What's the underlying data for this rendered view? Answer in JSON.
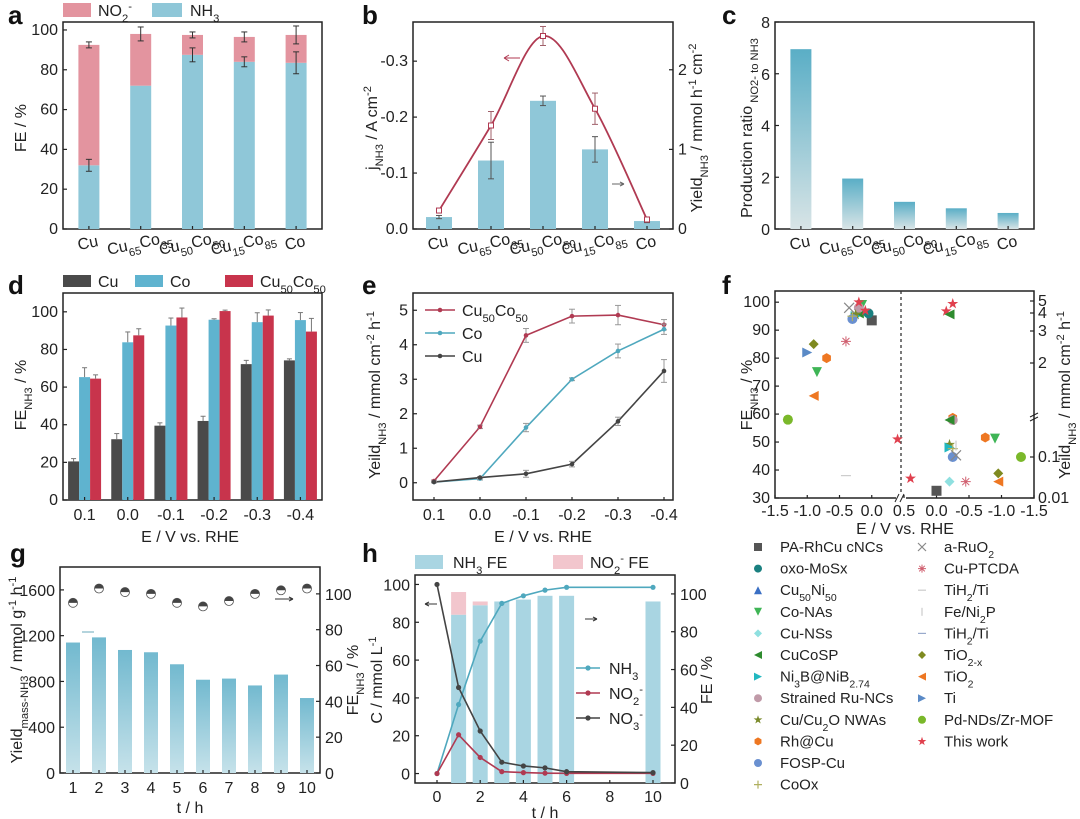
{
  "panels": {
    "a": "a",
    "b": "b",
    "c": "c",
    "d": "d",
    "e": "e",
    "f": "f",
    "g": "g",
    "h": "h"
  },
  "colors": {
    "nh3_blue": "#8fc7d8",
    "no2_pink": "#e3949f",
    "cu_dark": "#4a4a4a",
    "co_blue": "#5fb3cf",
    "cuco_red": "#c8344c",
    "line_red": "#b03a52",
    "line_teal": "#4fa8be",
    "line_gray": "#444444",
    "bar_light": "#a9d5e2"
  },
  "chart_data": [
    {
      "id": "a",
      "type": "bar",
      "stacked": true,
      "categories": [
        "Cu",
        "Cu65Co35",
        "Cu50Co50",
        "Cu15Co85",
        "Co"
      ],
      "category_labels": [
        {
          "main": "Cu",
          "sub1": "",
          "main2": "",
          "sub2": ""
        },
        {
          "main": "Cu",
          "sub1": "65",
          "main2": "Co",
          "sub2": "35"
        },
        {
          "main": "Cu",
          "sub1": "50",
          "main2": "Co",
          "sub2": "50"
        },
        {
          "main": "Cu",
          "sub1": "15",
          "main2": "Co",
          "sub2": "85"
        },
        {
          "main": "Co",
          "sub1": "",
          "main2": "",
          "sub2": ""
        }
      ],
      "series": [
        {
          "name": "NH3",
          "values": [
            32,
            72,
            87.5,
            84,
            83.5
          ],
          "err": [
            3,
            0,
            3.5,
            2.5,
            5.5
          ]
        },
        {
          "name": "NO2-",
          "values": [
            60.5,
            26,
            10,
            12.5,
            14
          ],
          "err": [
            1.5,
            3.5,
            1.5,
            2.5,
            4.5
          ]
        }
      ],
      "legend": [
        {
          "label": "NO",
          "sub": "2",
          "sup": "-"
        },
        {
          "label": "NH",
          "sub": "3",
          "sup": ""
        }
      ],
      "ylabel": "FE / %",
      "yticks": [
        "0",
        "20",
        "40",
        "60",
        "80",
        "100"
      ],
      "ylim": [
        0,
        104
      ]
    },
    {
      "id": "b",
      "type": "bar+line",
      "categories": [
        "Cu",
        "Cu65Co35",
        "Cu50Co50",
        "Cu15Co85",
        "Co"
      ],
      "bars": {
        "name": "Yield NH3",
        "axis": "right",
        "values": [
          0.15,
          0.86,
          1.61,
          1.0,
          0.1
        ],
        "err": [
          0.02,
          0.23,
          0.06,
          0.16,
          0.02
        ]
      },
      "line": {
        "name": "j NH3",
        "axis": "left",
        "values": [
          -0.033,
          -0.185,
          -0.345,
          -0.215,
          -0.017
        ],
        "err": [
          0.003,
          0.025,
          0.017,
          0.028,
          0.004
        ]
      },
      "ylabel_left": "j",
      "ylabel_left_sub": "NH3",
      "ylabel_left_unit": "/ A cm",
      "ylabel_left_sup": "-2",
      "ylabel_right": "Yield",
      "ylabel_right_sub": "NH3",
      "ylabel_right_unit": "/ mmol h",
      "ylabel_right_sup1": "-1",
      "ylabel_right_mid": " cm",
      "ylabel_right_sup2": "-2",
      "yticks_left": [
        "0.0",
        "-0.1",
        "-0.2",
        "-0.3"
      ],
      "yticks_right": [
        "0",
        "1",
        "2"
      ],
      "ylim_left": [
        0,
        -0.37
      ],
      "ylim_right": [
        0,
        2.6
      ]
    },
    {
      "id": "c",
      "type": "bar",
      "categories": [
        "Cu",
        "Cu65Co35",
        "Cu50Co50",
        "Cu15Co85",
        "Co"
      ],
      "values": [
        6.95,
        1.95,
        1.05,
        0.8,
        0.62
      ],
      "ylabel": "Production  ratio",
      "ylabel_sub": "NO2- to NH3",
      "yticks": [
        "0",
        "2",
        "4",
        "6",
        "8"
      ],
      "ylim": [
        0,
        8
      ]
    },
    {
      "id": "d",
      "type": "bar",
      "grouped": true,
      "categories": [
        "0.1",
        "0.0",
        "-0.1",
        "-0.2",
        "-0.3",
        "-0.4"
      ],
      "series": [
        {
          "name": "Cu",
          "values": [
            20.5,
            32.3,
            39.5,
            42,
            72.2,
            74.2
          ],
          "err": [
            1.5,
            3,
            1.5,
            2.5,
            2,
            0.8
          ]
        },
        {
          "name": "Co",
          "values": [
            65.3,
            83.8,
            92.7,
            95.8,
            94.5,
            95.6
          ],
          "err": [
            5,
            5.5,
            4,
            0.5,
            5,
            4
          ]
        },
        {
          "name": "Cu50Co50",
          "values": [
            64.5,
            87.5,
            97,
            100.4,
            98,
            89.5
          ],
          "err": [
            2,
            3.5,
            5,
            0.5,
            3,
            7
          ]
        }
      ],
      "ylabel": "FE",
      "ylabel_sub": "NH3",
      "ylabel_unit": " / %",
      "xlabel": "E / V vs. RHE",
      "yticks": [
        "0",
        "20",
        "40",
        "60",
        "80",
        "100"
      ],
      "ylim": [
        0,
        110
      ]
    },
    {
      "id": "e",
      "type": "line",
      "x": [
        "0.1",
        "0.0",
        "-0.1",
        "-0.2",
        "-0.3",
        "-0.4"
      ],
      "series": [
        {
          "name": "Cu50Co50",
          "values": [
            0.05,
            1.62,
            4.27,
            4.83,
            4.86,
            4.58
          ],
          "err": [
            0.03,
            0.05,
            0.2,
            0.2,
            0.28,
            0.15
          ]
        },
        {
          "name": "Co",
          "values": [
            0.02,
            0.12,
            1.6,
            3.0,
            3.82,
            4.45
          ],
          "err": [
            0.02,
            0.04,
            0.12,
            0.04,
            0.2,
            0.15
          ]
        },
        {
          "name": "Cu",
          "values": [
            0.02,
            0.15,
            0.26,
            0.54,
            1.78,
            3.24
          ],
          "err": [
            0.02,
            0.03,
            0.1,
            0.08,
            0.12,
            0.33
          ]
        }
      ],
      "ylabel": "Yeild",
      "ylabel_sub": "NH3",
      "ylabel_unit": " / mmol cm",
      "ylabel_sup1": "-2",
      "ylabel_unit2": " h",
      "ylabel_sup2": "-1",
      "xlabel": "E / V vs. RHE",
      "yticks": [
        "0",
        "1",
        "2",
        "3",
        "4",
        "5"
      ],
      "ylim": [
        -0.5,
        5.5
      ]
    },
    {
      "id": "f",
      "type": "scatter",
      "xlabel": "E / V vs. RHE",
      "ylabel_left": "FE",
      "ylabel_left_sub": "NH3",
      "ylabel_left_unit": " / %",
      "ylabel_right": "Yeild",
      "ylabel_right_sub": "NH3",
      "ylabel_right_unit": " / mmol cm",
      "ylabel_right_sup1": "-2",
      "ylabel_right_unit2": " h",
      "ylabel_right_sup2": "-1",
      "xticks_left": [
        "-1.5",
        "-1.0",
        "-0.5",
        "0.0",
        "0.5"
      ],
      "xticks_right": [
        "0.5",
        "0.0",
        "-0.5",
        "-1.0",
        "-1.5"
      ],
      "yticks_left": [
        "30",
        "40",
        "50",
        "60",
        "70",
        "80",
        "90",
        "100"
      ],
      "yticks_right": [
        "0.01",
        "0.1",
        "2",
        "3",
        "4",
        "5"
      ],
      "ylim_left": [
        30,
        104
      ],
      "left_points": [
        {
          "name": "PA-RhCu cNCs",
          "x": 0.0,
          "y": 93.5
        },
        {
          "name": "oxo-MoSx",
          "x": -0.05,
          "y": 96
        },
        {
          "name": "Cu50Ni50",
          "x": -0.2,
          "y": 99
        },
        {
          "name": "Co-NAs",
          "x": -0.15,
          "y": 99
        },
        {
          "name": "Cu-NSs",
          "x": -0.3,
          "y": 94
        },
        {
          "name": "CuCoSP",
          "x": -0.2,
          "y": 96
        },
        {
          "name": "Ni3B@NiB2.74",
          "x": -0.25,
          "y": 95
        },
        {
          "name": "Strained Ru-NCs",
          "x": -0.2,
          "y": 98
        },
        {
          "name": "Cu/Cu2O NWAs",
          "x": -0.25,
          "y": 95.5
        },
        {
          "name": "Rh@Cu",
          "x": -0.7,
          "y": 80
        },
        {
          "name": "FOSP-Cu",
          "x": -0.3,
          "y": 94
        },
        {
          "name": "CoOx",
          "x": -0.3,
          "y": 95
        },
        {
          "name": "a-RuO2",
          "x": -0.35,
          "y": 98
        },
        {
          "name": "Cu-PTCDA",
          "x": -0.4,
          "y": 86
        },
        {
          "name": "TiH2/Ti",
          "x": -0.4,
          "y": 38
        },
        {
          "name": "TiO2-x",
          "x": -0.9,
          "y": 85
        },
        {
          "name": "TiO2",
          "x": -0.9,
          "y": 66.5
        },
        {
          "name": "Ti",
          "x": -1.0,
          "y": 82
        },
        {
          "name": "Pd-NDs/Zr-MOF",
          "x": -1.3,
          "y": 58
        },
        {
          "name": "Co-NAs",
          "x": -0.85,
          "y": 75
        },
        {
          "name": "This work",
          "x": -0.2,
          "y": 100
        },
        {
          "name": "This work",
          "x": -0.1,
          "y": 97
        },
        {
          "name": "This work",
          "x": 0.4,
          "y": 51
        }
      ],
      "right_points_note": "yield on log-broken axis",
      "right_points": [
        {
          "name": "This work",
          "x": -0.25,
          "y": 4.8
        },
        {
          "name": "This work",
          "x": -0.15,
          "y": 4.3
        },
        {
          "name": "CuCoSP",
          "x": -0.2,
          "y": 4.1
        },
        {
          "name": "Rh@Cu",
          "x": -0.25,
          "y": 0.9
        },
        {
          "name": "Strained Ru-NCs",
          "x": -0.25,
          "y": 0.8
        },
        {
          "name": "CuCoSP",
          "x": -0.2,
          "y": 0.8
        },
        {
          "name": "Rh@Cu",
          "x": -0.75,
          "y": 0.3
        },
        {
          "name": "Co-NAs",
          "x": -0.9,
          "y": 0.28
        },
        {
          "name": "Cu/Cu2O NWAs",
          "x": -0.2,
          "y": 0.2
        },
        {
          "name": "Ni3B@NiB2.74",
          "x": -0.2,
          "y": 0.17
        },
        {
          "name": "CoOx",
          "x": -0.25,
          "y": 0.16
        },
        {
          "name": "Fe/Ni2P",
          "x": -0.3,
          "y": 0.19
        },
        {
          "name": "FOSP-Cu",
          "x": -0.25,
          "y": 0.1
        },
        {
          "name": "a-RuO2",
          "x": -0.3,
          "y": 0.11
        },
        {
          "name": "Pd-NDs/Zr-MOF",
          "x": -1.3,
          "y": 0.1
        },
        {
          "name": "TiO2-x",
          "x": -0.95,
          "y": 0.04
        },
        {
          "name": "TiO2",
          "x": -0.95,
          "y": 0.025
        },
        {
          "name": "Cu-NSs",
          "x": -0.2,
          "y": 0.025
        },
        {
          "name": "Cu-PTCDA",
          "x": -0.45,
          "y": 0.025
        },
        {
          "name": "This work",
          "x": 0.4,
          "y": 0.03
        },
        {
          "name": "PA-RhCu cNCs",
          "x": 0.0,
          "y": 0.015
        }
      ],
      "legend_col1": [
        {
          "label": "PA-RhCu cNCs",
          "marker": "square",
          "color": "#555555"
        },
        {
          "label": "oxo-MoSx",
          "marker": "circle",
          "color": "#1a8080"
        },
        {
          "label": "Cu50Ni50",
          "marker": "triangle-up",
          "color": "#3a6fc4"
        },
        {
          "label": "Co-NAs",
          "marker": "triangle-down",
          "color": "#3fb556"
        },
        {
          "label": "Cu-NSs",
          "marker": "diamond",
          "color": "#8fe0e0"
        },
        {
          "label": "CuCoSP",
          "marker": "triangle-left",
          "color": "#2e8b2e"
        },
        {
          "label": "Ni3B@NiB2.74",
          "marker": "triangle-right",
          "color": "#22b8c0"
        },
        {
          "label": "Strained Ru-NCs",
          "marker": "circle",
          "color": "#c09aa8"
        },
        {
          "label": "Cu/Cu2O NWAs",
          "marker": "star",
          "color": "#7a8a2a"
        },
        {
          "label": "Rh@Cu",
          "marker": "hexagon",
          "color": "#ee7722"
        },
        {
          "label": "FOSP-Cu",
          "marker": "circle",
          "color": "#6a90d0"
        },
        {
          "label": "CoOx",
          "marker": "plus",
          "color": "#b0b060"
        }
      ],
      "legend_col2": [
        {
          "label": "a-RuO2",
          "marker": "x",
          "color": "#888888"
        },
        {
          "label": "Cu-PTCDA",
          "marker": "asterisk",
          "color": "#d06070"
        },
        {
          "label": "TiH2/Ti",
          "marker": "hline",
          "color": "#cccccc"
        },
        {
          "label": "Fe/Ni2P",
          "marker": "vline",
          "color": "#cccccc"
        },
        {
          "label": "TiH2/Ti",
          "marker": "hline",
          "color": "#99aacc"
        },
        {
          "label": "TiO2-x",
          "marker": "diamond",
          "color": "#7f8a20"
        },
        {
          "label": "TiO2",
          "marker": "triangle-left",
          "color": "#ee7722"
        },
        {
          "label": "Ti",
          "marker": "triangle-right",
          "color": "#5a8ac6"
        },
        {
          "label": "Pd-NDs/Zr-MOF",
          "marker": "circle",
          "color": "#7ab82a"
        },
        {
          "label": "This work",
          "marker": "star",
          "color": "#e0404e"
        }
      ]
    },
    {
      "id": "g",
      "type": "bar+scatter",
      "x": [
        "1",
        "2",
        "3",
        "4",
        "5",
        "6",
        "7",
        "8",
        "9",
        "10"
      ],
      "bars": {
        "name": "Yield mass-NH3",
        "axis": "left",
        "values": [
          1140,
          1185,
          1075,
          1055,
          950,
          815,
          825,
          765,
          860,
          655
        ]
      },
      "points": {
        "name": "FE NH3",
        "axis": "right",
        "values": [
          95,
          103,
          101,
          100,
          95,
          93,
          96,
          100,
          102,
          103
        ]
      },
      "ylabel_left": "Yield",
      "ylabel_left_sub": "mass-NH3",
      "ylabel_left_unit": " / mmol g",
      "ylabel_left_sup1": "-1",
      "ylabel_left_unit2": " h",
      "ylabel_left_sup2": "-1",
      "ylabel_right": "FE",
      "ylabel_right_sub": "NH3",
      "ylabel_right_unit": " / %",
      "xlabel": "t / h",
      "yticks_left": [
        "0",
        "400",
        "800",
        "1200",
        "1600"
      ],
      "yticks_right": [
        "0",
        "20",
        "40",
        "60",
        "80",
        "100"
      ],
      "ylim_left": [
        0,
        1800
      ],
      "ylim_right": [
        0,
        115
      ]
    },
    {
      "id": "h",
      "type": "bar+line",
      "bar_x": [
        1,
        2,
        3,
        4,
        5,
        6,
        10
      ],
      "bars": [
        {
          "name": "NH3 FE",
          "values": [
            89,
            94,
            96,
            97,
            99,
            99,
            96
          ]
        },
        {
          "name": "NO2- FE",
          "values": [
            12,
            2,
            0,
            0,
            0,
            0,
            0
          ]
        }
      ],
      "line_x": [
        0,
        1,
        2,
        3,
        4,
        5,
        6,
        10
      ],
      "series": [
        {
          "name": "NH3",
          "values": [
            0,
            36.5,
            70,
            90,
            94,
            97,
            98.5,
            98.5
          ]
        },
        {
          "name": "NO2-",
          "values": [
            0,
            20.5,
            8.5,
            1,
            0.5,
            0.2,
            0.1,
            0.1
          ]
        },
        {
          "name": "NO3-",
          "values": [
            100,
            45.5,
            22.5,
            6,
            4,
            3,
            1,
            0.5
          ]
        }
      ],
      "legend_bars": [
        {
          "label": "NH",
          "sub": "3",
          "tail": " FE"
        },
        {
          "label": "NO",
          "sub": "2",
          "sup": "-",
          "tail": " FE"
        }
      ],
      "ylabel_left": "C / mmol L",
      "ylabel_left_sup": "-1",
      "ylabel_right": "FE / %",
      "xlabel": "t / h",
      "xticks": [
        "0",
        "2",
        "4",
        "6",
        "8",
        "10"
      ],
      "yticks_left": [
        "0",
        "20",
        "40",
        "60",
        "80",
        "100"
      ],
      "yticks_right": [
        "0",
        "20",
        "40",
        "60",
        "80",
        "100"
      ],
      "ylim_left": [
        -5,
        105
      ],
      "ylim_right": [
        0,
        110
      ]
    }
  ]
}
